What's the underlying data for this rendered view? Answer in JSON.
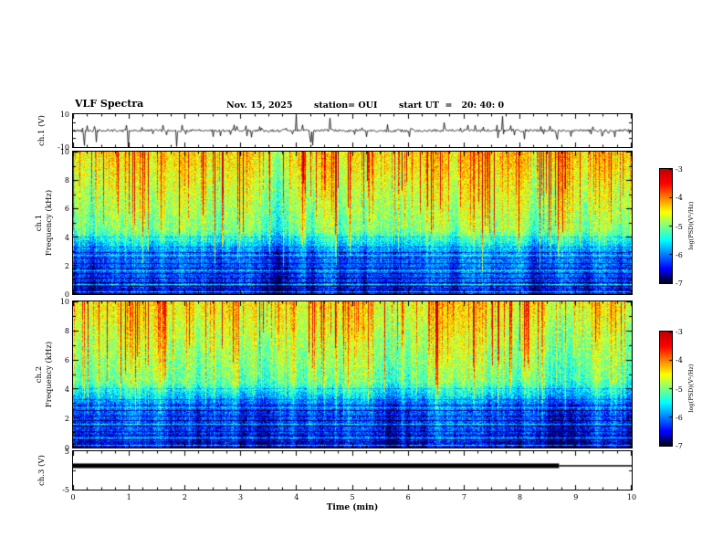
{
  "header": {
    "title": "VLF Spectra",
    "date": "Nov. 15, 2025",
    "station": "station= OUI",
    "start_ut": "start UT  =   20: 40: 0"
  },
  "xaxis": {
    "label": "Time (min)",
    "min": 0,
    "max": 10,
    "ticks": [
      0,
      1,
      2,
      3,
      4,
      5,
      6,
      7,
      8,
      9,
      10
    ]
  },
  "colorbar": {
    "label": "log(PSD)(V²/Hz)",
    "ticks": [
      -3,
      -4,
      -5,
      -6,
      -7
    ],
    "value_min": -7,
    "value_max": -3,
    "colormap": "jet (black/dark-blue low through cyan, green, yellow to red high)"
  },
  "chart_data": [
    {
      "type": "line",
      "name": "ch1_waveform",
      "ylabel": "ch.1 (V)",
      "ylim": [
        -10,
        10
      ],
      "yticks": [
        10,
        -10
      ],
      "xlim": [
        0,
        10
      ],
      "description": "Noisy voltage trace near 0 V with frequent impulsive sferic spikes reaching toward ±10 V throughout the 10-minute record"
    },
    {
      "type": "heatmap",
      "name": "ch1_spectrogram",
      "ylabel": "ch.1 Frequency (kHz)",
      "ylabel_lines": [
        "ch.1",
        "Frequency (kHz)"
      ],
      "ylim": [
        0,
        10
      ],
      "yticks": [
        10,
        8,
        6,
        4,
        2,
        0
      ],
      "xlim": [
        0,
        10
      ],
      "value_scale": "log(PSD)(V²/Hz)",
      "value_range": [
        -7,
        -3
      ],
      "features": [
        "dense vertical broadband sferic streaks (yellow/red) strongest above 4 kHz",
        "diffuse green/cyan background from ~3 to 10 kHz",
        "dark blue/black low-power band below ~3 kHz",
        "horizontal dark interference lines between ~0.5 and 3 kHz with a few bright cyan lines"
      ]
    },
    {
      "type": "heatmap",
      "name": "ch2_spectrogram",
      "ylabel": "ch.2 Frequency (kHz)",
      "ylabel_lines": [
        "ch.2",
        "Frequency (kHz)"
      ],
      "ylim": [
        0,
        10
      ],
      "yticks": [
        10,
        8,
        6,
        4,
        2,
        0
      ],
      "xlim": [
        0,
        10
      ],
      "value_scale": "log(PSD)(V²/Hz)",
      "value_range": [
        -7,
        -3
      ],
      "features": [
        "vertical broadband sferic streaks, slightly less red than ch.1",
        "green/cyan diffuse background 3-10 kHz",
        "dark blue/black band below ~3 kHz",
        "horizontal dark interference lines between ~0.5 and 3 kHz"
      ]
    },
    {
      "type": "line",
      "name": "ch3_waveform",
      "ylabel": "ch.3 (V)",
      "ylim": [
        -5,
        5
      ],
      "yticks": [
        5,
        -5
      ],
      "xlim": [
        0,
        10
      ],
      "level_v": 1.2,
      "thick_until_min": 8.7,
      "description": "Constant level near +1.2 V: thick black trace from 0 to ~8.7 min, thin trace from ~8.7 to 10 min"
    }
  ]
}
